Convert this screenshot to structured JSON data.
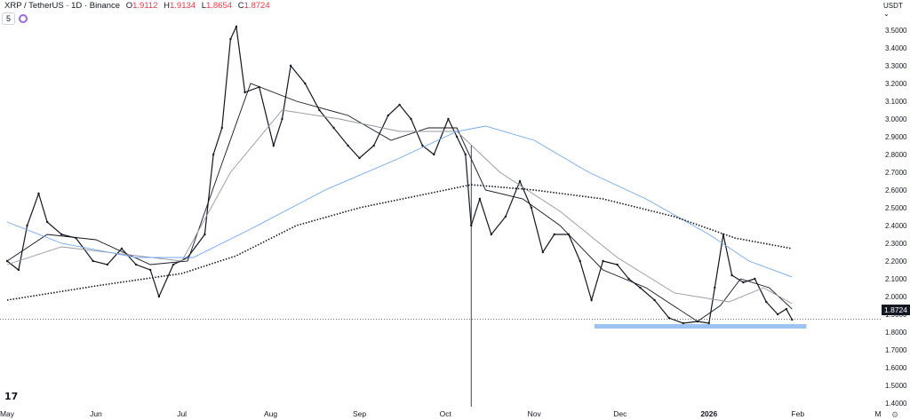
{
  "header": {
    "symbol": "XRP / TetherUS · 1D · Binance",
    "open_label": "O",
    "open": "1.9112",
    "high_label": "H",
    "high": "1.9134",
    "low_label": "L",
    "low": "1.8654",
    "close_label": "C",
    "close": "1.8724",
    "indicator_value": "5"
  },
  "currency_selector": "USDT ⌄",
  "last_price_tag": "1.8724",
  "logo_text": "17",
  "colors": {
    "candle": "#131722",
    "ma_fast": "#131722",
    "ma_mid": "#9598a1",
    "ma_slow": "#6fa8f0",
    "ma_200": "#131722",
    "support_zone": "#9cc3f2",
    "negative": "#f23645"
  },
  "chart_data": {
    "type": "line",
    "y_axis": {
      "scale": "linear",
      "ylim": [
        1.38,
        3.62
      ],
      "ticks": [
        "3.5000",
        "3.4000",
        "3.3000",
        "3.2000",
        "3.1000",
        "3.0000",
        "2.9000",
        "2.8000",
        "2.7000",
        "2.6000",
        "2.5000",
        "2.4000",
        "2.3000",
        "2.2000",
        "2.1000",
        "2.0000",
        "1.9000",
        "1.8000",
        "1.7000",
        "1.6000",
        "1.5000",
        "1.4000"
      ],
      "position": "right"
    },
    "x_axis": {
      "ticks": [
        "May",
        "Jun",
        "Jul",
        "Aug",
        "Sep",
        "Oct",
        "Nov",
        "Dec",
        "2026",
        "Feb",
        "M"
      ],
      "tick_dates": [
        "2025-05-01",
        "2025-06-01",
        "2025-07-01",
        "2025-08-01",
        "2025-09-01",
        "2025-10-01",
        "2025-11-01",
        "2025-12-01",
        "2026-01-01",
        "2026-02-01",
        "2026-03-01"
      ]
    },
    "grid": false,
    "price_series": [
      {
        "date": "2025-05-01",
        "value": 2.2
      },
      {
        "date": "2025-05-05",
        "value": 2.15
      },
      {
        "date": "2025-05-08",
        "value": 2.4
      },
      {
        "date": "2025-05-12",
        "value": 2.58
      },
      {
        "date": "2025-05-15",
        "value": 2.42
      },
      {
        "date": "2025-05-20",
        "value": 2.35
      },
      {
        "date": "2025-05-25",
        "value": 2.33
      },
      {
        "date": "2025-05-31",
        "value": 2.2
      },
      {
        "date": "2025-06-05",
        "value": 2.18
      },
      {
        "date": "2025-06-10",
        "value": 2.27
      },
      {
        "date": "2025-06-15",
        "value": 2.18
      },
      {
        "date": "2025-06-20",
        "value": 2.15
      },
      {
        "date": "2025-06-23",
        "value": 2.0
      },
      {
        "date": "2025-06-28",
        "value": 2.18
      },
      {
        "date": "2025-07-03",
        "value": 2.22
      },
      {
        "date": "2025-07-09",
        "value": 2.35
      },
      {
        "date": "2025-07-12",
        "value": 2.8
      },
      {
        "date": "2025-07-15",
        "value": 2.95
      },
      {
        "date": "2025-07-18",
        "value": 3.45
      },
      {
        "date": "2025-07-20",
        "value": 3.52
      },
      {
        "date": "2025-07-23",
        "value": 3.15
      },
      {
        "date": "2025-07-28",
        "value": 3.18
      },
      {
        "date": "2025-08-02",
        "value": 2.85
      },
      {
        "date": "2025-08-05",
        "value": 3.0
      },
      {
        "date": "2025-08-08",
        "value": 3.3
      },
      {
        "date": "2025-08-13",
        "value": 3.2
      },
      {
        "date": "2025-08-18",
        "value": 3.05
      },
      {
        "date": "2025-08-23",
        "value": 2.95
      },
      {
        "date": "2025-08-28",
        "value": 2.85
      },
      {
        "date": "2025-09-01",
        "value": 2.78
      },
      {
        "date": "2025-09-06",
        "value": 2.85
      },
      {
        "date": "2025-09-11",
        "value": 3.02
      },
      {
        "date": "2025-09-15",
        "value": 3.08
      },
      {
        "date": "2025-09-19",
        "value": 3.0
      },
      {
        "date": "2025-09-23",
        "value": 2.85
      },
      {
        "date": "2025-09-27",
        "value": 2.8
      },
      {
        "date": "2025-10-02",
        "value": 3.0
      },
      {
        "date": "2025-10-05",
        "value": 2.9
      },
      {
        "date": "2025-10-08",
        "value": 2.8
      },
      {
        "date": "2025-10-10",
        "value": 2.4
      },
      {
        "date": "2025-10-13",
        "value": 2.55
      },
      {
        "date": "2025-10-17",
        "value": 2.35
      },
      {
        "date": "2025-10-22",
        "value": 2.45
      },
      {
        "date": "2025-10-27",
        "value": 2.65
      },
      {
        "date": "2025-10-31",
        "value": 2.5
      },
      {
        "date": "2025-11-04",
        "value": 2.25
      },
      {
        "date": "2025-11-08",
        "value": 2.35
      },
      {
        "date": "2025-11-13",
        "value": 2.35
      },
      {
        "date": "2025-11-17",
        "value": 2.2
      },
      {
        "date": "2025-11-21",
        "value": 1.98
      },
      {
        "date": "2025-11-25",
        "value": 2.2
      },
      {
        "date": "2025-11-30",
        "value": 2.18
      },
      {
        "date": "2025-12-04",
        "value": 2.1
      },
      {
        "date": "2025-12-08",
        "value": 2.05
      },
      {
        "date": "2025-12-13",
        "value": 1.98
      },
      {
        "date": "2025-12-18",
        "value": 1.88
      },
      {
        "date": "2025-12-23",
        "value": 1.85
      },
      {
        "date": "2025-12-28",
        "value": 1.86
      },
      {
        "date": "2026-01-01",
        "value": 1.85
      },
      {
        "date": "2026-01-03",
        "value": 2.05
      },
      {
        "date": "2026-01-06",
        "value": 2.35
      },
      {
        "date": "2026-01-09",
        "value": 2.12
      },
      {
        "date": "2026-01-13",
        "value": 2.08
      },
      {
        "date": "2026-01-17",
        "value": 2.1
      },
      {
        "date": "2026-01-21",
        "value": 1.97
      },
      {
        "date": "2026-01-25",
        "value": 1.9
      },
      {
        "date": "2026-01-28",
        "value": 1.93
      },
      {
        "date": "2026-01-30",
        "value": 1.87
      }
    ],
    "moving_averages": [
      {
        "style": "solid",
        "color": "#131722",
        "values": [
          {
            "date": "2025-05-01",
            "value": 2.2
          },
          {
            "date": "2025-05-15",
            "value": 2.35
          },
          {
            "date": "2025-06-01",
            "value": 2.32
          },
          {
            "date": "2025-06-20",
            "value": 2.18
          },
          {
            "date": "2025-07-03",
            "value": 2.2
          },
          {
            "date": "2025-07-15",
            "value": 2.75
          },
          {
            "date": "2025-07-25",
            "value": 3.2
          },
          {
            "date": "2025-08-10",
            "value": 3.1
          },
          {
            "date": "2025-08-28",
            "value": 3.02
          },
          {
            "date": "2025-09-12",
            "value": 2.88
          },
          {
            "date": "2025-09-25",
            "value": 2.95
          },
          {
            "date": "2025-10-05",
            "value": 2.95
          },
          {
            "date": "2025-10-15",
            "value": 2.6
          },
          {
            "date": "2025-10-28",
            "value": 2.55
          },
          {
            "date": "2025-11-10",
            "value": 2.4
          },
          {
            "date": "2025-11-25",
            "value": 2.15
          },
          {
            "date": "2025-12-10",
            "value": 2.05
          },
          {
            "date": "2025-12-28",
            "value": 1.86
          },
          {
            "date": "2026-01-05",
            "value": 1.95
          },
          {
            "date": "2026-01-12",
            "value": 2.1
          },
          {
            "date": "2026-01-22",
            "value": 2.05
          },
          {
            "date": "2026-01-30",
            "value": 1.93
          }
        ]
      },
      {
        "style": "solid",
        "color": "#9598a1",
        "values": [
          {
            "date": "2025-05-01",
            "value": 2.18
          },
          {
            "date": "2025-05-20",
            "value": 2.28
          },
          {
            "date": "2025-06-10",
            "value": 2.24
          },
          {
            "date": "2025-07-01",
            "value": 2.2
          },
          {
            "date": "2025-07-18",
            "value": 2.7
          },
          {
            "date": "2025-08-05",
            "value": 3.05
          },
          {
            "date": "2025-08-25",
            "value": 3.0
          },
          {
            "date": "2025-09-15",
            "value": 2.93
          },
          {
            "date": "2025-10-05",
            "value": 2.93
          },
          {
            "date": "2025-10-20",
            "value": 2.7
          },
          {
            "date": "2025-11-10",
            "value": 2.48
          },
          {
            "date": "2025-11-30",
            "value": 2.22
          },
          {
            "date": "2025-12-20",
            "value": 2.02
          },
          {
            "date": "2026-01-08",
            "value": 1.97
          },
          {
            "date": "2026-01-20",
            "value": 2.05
          },
          {
            "date": "2026-01-30",
            "value": 1.96
          }
        ]
      },
      {
        "style": "solid",
        "color": "#6fa8f0",
        "values": [
          {
            "date": "2025-05-01",
            "value": 2.42
          },
          {
            "date": "2025-05-20",
            "value": 2.3
          },
          {
            "date": "2025-06-15",
            "value": 2.22
          },
          {
            "date": "2025-07-05",
            "value": 2.22
          },
          {
            "date": "2025-07-25",
            "value": 2.38
          },
          {
            "date": "2025-08-20",
            "value": 2.6
          },
          {
            "date": "2025-09-15",
            "value": 2.78
          },
          {
            "date": "2025-10-05",
            "value": 2.93
          },
          {
            "date": "2025-10-15",
            "value": 2.96
          },
          {
            "date": "2025-11-01",
            "value": 2.88
          },
          {
            "date": "2025-11-20",
            "value": 2.7
          },
          {
            "date": "2025-12-10",
            "value": 2.55
          },
          {
            "date": "2026-01-01",
            "value": 2.35
          },
          {
            "date": "2026-01-15",
            "value": 2.2
          },
          {
            "date": "2026-01-30",
            "value": 2.11
          }
        ]
      },
      {
        "style": "dotted",
        "color": "#131722",
        "values": [
          {
            "date": "2025-05-01",
            "value": 1.98
          },
          {
            "date": "2025-06-01",
            "value": 2.06
          },
          {
            "date": "2025-07-01",
            "value": 2.13
          },
          {
            "date": "2025-07-20",
            "value": 2.23
          },
          {
            "date": "2025-08-10",
            "value": 2.4
          },
          {
            "date": "2025-09-01",
            "value": 2.5
          },
          {
            "date": "2025-09-25",
            "value": 2.58
          },
          {
            "date": "2025-10-10",
            "value": 2.63
          },
          {
            "date": "2025-11-01",
            "value": 2.6
          },
          {
            "date": "2025-11-25",
            "value": 2.55
          },
          {
            "date": "2025-12-20",
            "value": 2.45
          },
          {
            "date": "2026-01-10",
            "value": 2.33
          },
          {
            "date": "2026-01-30",
            "value": 2.27
          }
        ]
      }
    ],
    "support_zone": {
      "from": "2025-11-22",
      "to": "2026-02-04",
      "low": 1.82,
      "high": 1.845
    },
    "last_price": 1.8724,
    "vertical_marker_date": "2025-10-10"
  }
}
